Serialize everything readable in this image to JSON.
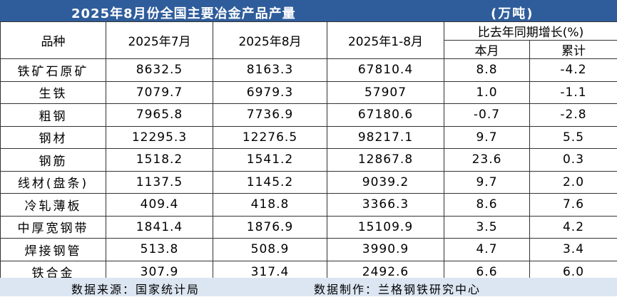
{
  "header": {
    "title": "2025年8月份全国主要冶金产品产量",
    "unit": "(万吨)"
  },
  "table": {
    "columns": [
      "品种",
      "2025年7月",
      "2025年8月",
      "2025年1-8月",
      "比去年同期增长(%)"
    ],
    "subcolumns": [
      "本月",
      "累计"
    ],
    "rows": [
      [
        "铁矿石原矿",
        "8632.5",
        "8163.3",
        "67810.4",
        "8.8",
        "-4.2"
      ],
      [
        "生铁",
        "7079.7",
        "6979.3",
        "57907",
        "1.0",
        "-1.1"
      ],
      [
        "粗钢",
        "7965.8",
        "7736.9",
        "67180.6",
        "-0.7",
        "-2.8"
      ],
      [
        "钢材",
        "12295.3",
        "12276.5",
        "98217.1",
        "9.7",
        "5.5"
      ],
      [
        "钢筋",
        "1518.2",
        "1541.2",
        "12867.8",
        "23.6",
        "0.3"
      ],
      [
        "线材(盘条)",
        "1137.5",
        "1145.2",
        "9039.2",
        "9.7",
        "2.0"
      ],
      [
        "冷轧薄板",
        "409.4",
        "418.8",
        "3366.3",
        "8.6",
        "7.6"
      ],
      [
        "中厚宽钢带",
        "1841.4",
        "1876.9",
        "15109.9",
        "3.5",
        "4.2"
      ],
      [
        "焊接钢管",
        "513.8",
        "508.9",
        "3990.9",
        "4.7",
        "3.4"
      ],
      [
        "铁合金",
        "307.9",
        "317.4",
        "2492.6",
        "6.6",
        "6.0"
      ]
    ]
  },
  "footer": {
    "source": "数据来源：国家统计局",
    "maker": "数据制作：兰格钢铁研究中心"
  }
}
